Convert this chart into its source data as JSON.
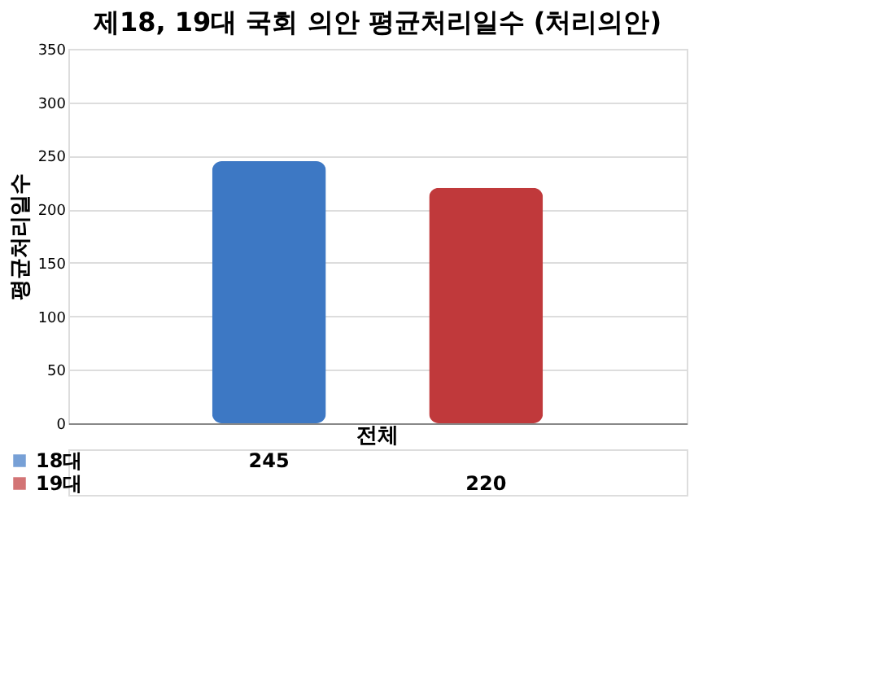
{
  "chart_data": {
    "type": "bar",
    "title": "제18, 19대 국회 의안 평균처리일수 (처리의안)",
    "ylabel": "평균처리일수",
    "categories": [
      "전체"
    ],
    "series": [
      {
        "name": "18대",
        "color": "#3d78c4",
        "values": [
          245
        ]
      },
      {
        "name": "19대",
        "color": "#c0393b",
        "values": [
          220
        ]
      }
    ],
    "ylim": [
      0,
      350
    ],
    "yticks": [
      0,
      50,
      100,
      150,
      200,
      250,
      300,
      350
    ],
    "grid": "y",
    "legend": "bottom",
    "data_labels": true
  }
}
